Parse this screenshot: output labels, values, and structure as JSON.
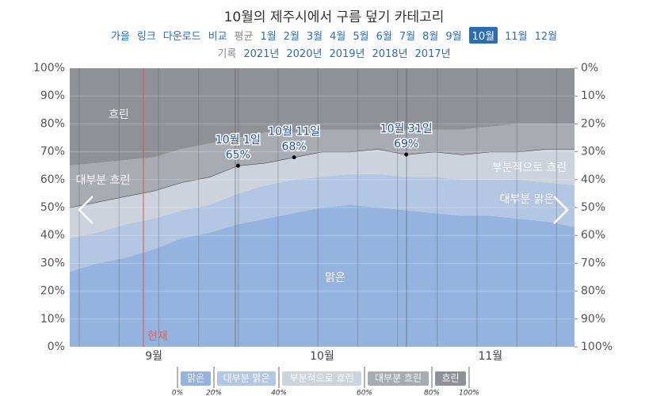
{
  "header": {
    "title": "10월의 제주시에서 구름 덮기 카테고리",
    "nav": [
      "가을",
      "링크",
      "다운로드"
    ],
    "compare": "비교",
    "average": "평균",
    "months": [
      "1월",
      "2월",
      "3월",
      "4월",
      "5월",
      "6월",
      "7월",
      "8월",
      "9월",
      "10월",
      "11월",
      "12월"
    ],
    "selected_month_index": 9,
    "record": "기록",
    "years": [
      "2021년",
      "2020년",
      "2019년",
      "2018년",
      "2017년"
    ]
  },
  "chart_data": {
    "type": "stacked-area",
    "categories": [
      null,
      null,
      null,
      "9월",
      null,
      null,
      null,
      null,
      null,
      "10월",
      null,
      null,
      null,
      null,
      null,
      "11월",
      null,
      null,
      null
    ],
    "series": [
      {
        "name": "맑은",
        "color": "#94b3de",
        "values": [
          27,
          30,
          32,
          35,
          39,
          41,
          44,
          46,
          48,
          50,
          51,
          50,
          49,
          48,
          47,
          47,
          46,
          45,
          43
        ]
      },
      {
        "name": "대부분 맑은",
        "color": "#b3c6e2",
        "values": [
          12,
          11,
          12,
          11,
          10,
          10,
          11,
          12,
          12,
          11,
          11,
          12,
          12,
          13,
          13,
          13,
          14,
          14,
          15
        ]
      },
      {
        "name": "부분적으로 흐린",
        "color": "#cdd3dc",
        "line_color": "#333333",
        "values": [
          11,
          11,
          10,
          10,
          10,
          10,
          10,
          8,
          8,
          9,
          8,
          9,
          8,
          9,
          9,
          10,
          10,
          12,
          13
        ]
      },
      {
        "name": "대부분 흐린",
        "color": "#a7abb2",
        "values": [
          15,
          14,
          13,
          12,
          12,
          12,
          10,
          11,
          9,
          8,
          8,
          7,
          9,
          8,
          9,
          9,
          10,
          9,
          9
        ]
      },
      {
        "name": "흐린",
        "color": "#8e9196",
        "values": [
          35,
          34,
          33,
          32,
          29,
          27,
          25,
          23,
          23,
          22,
          22,
          22,
          22,
          22,
          22,
          21,
          20,
          20,
          20
        ]
      }
    ],
    "ylim": [
      0,
      100
    ],
    "yticks": [
      {
        "value": 0,
        "label": "0%"
      },
      {
        "value": 10,
        "label": "10%"
      },
      {
        "value": 20,
        "label": "20%"
      },
      {
        "value": 30,
        "label": "30%"
      },
      {
        "value": 40,
        "label": "40%"
      },
      {
        "value": 50,
        "label": "50%"
      },
      {
        "value": 60,
        "label": "60%"
      },
      {
        "value": 70,
        "label": "70%"
      },
      {
        "value": 80,
        "label": "80%"
      },
      {
        "value": 90,
        "label": "90%"
      },
      {
        "value": 100,
        "label": "100%"
      }
    ],
    "y2lim": [
      100,
      0
    ],
    "y2ticks": [
      {
        "value": 100,
        "label": "100%"
      },
      {
        "value": 90,
        "label": "90%"
      },
      {
        "value": 80,
        "label": "80%"
      },
      {
        "value": 70,
        "label": "70%"
      },
      {
        "value": 60,
        "label": "60%"
      },
      {
        "value": 50,
        "label": "50%"
      },
      {
        "value": 40,
        "label": "40%"
      },
      {
        "value": 30,
        "label": "30%"
      },
      {
        "value": 20,
        "label": "20%"
      },
      {
        "value": 10,
        "label": "10%"
      },
      {
        "value": 0,
        "label": "0%"
      }
    ],
    "grid": true,
    "annotations": [
      {
        "text": "10월 1일",
        "value": 65,
        "value_label": "65%"
      },
      {
        "text": "10월 11일",
        "value": 68,
        "value_label": "68%"
      },
      {
        "text": "10월 31일",
        "value": 69,
        "value_label": "69%"
      }
    ],
    "now_label": "현재",
    "legend_ticks": [
      {
        "value": 0,
        "label": "0%"
      },
      {
        "value": 20,
        "label": "20%"
      },
      {
        "value": 40,
        "label": "40%"
      },
      {
        "value": 60,
        "label": "60%"
      },
      {
        "value": 80,
        "label": "80%"
      },
      {
        "value": 100,
        "label": "100%"
      }
    ]
  }
}
